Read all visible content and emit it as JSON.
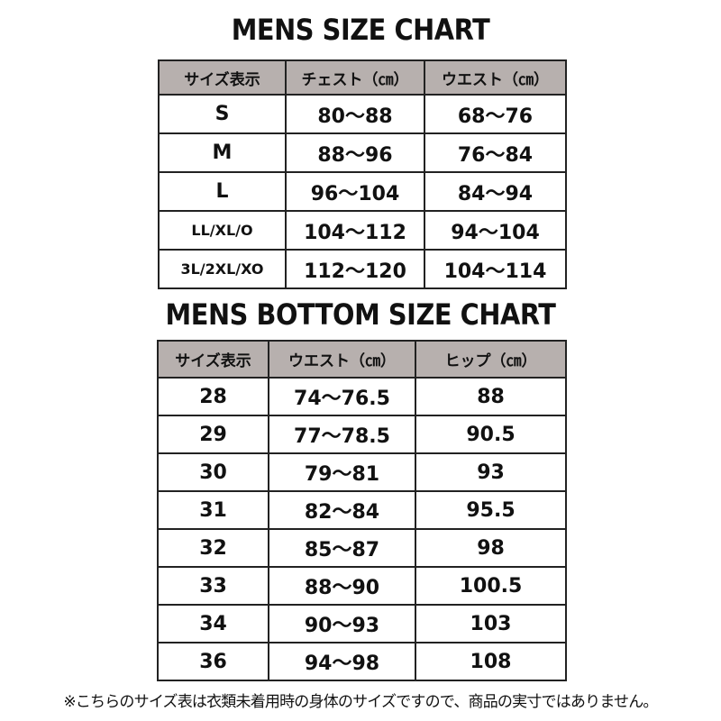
{
  "top_chart": {
    "title": "MENS SIZE CHART",
    "headers": [
      "サイズ表示",
      "チェスト（㎝）",
      "ウエスト（㎝）"
    ],
    "rows": [
      [
        "S",
        "80～88",
        "68～76"
      ],
      [
        "M",
        "88～96",
        "76～84"
      ],
      [
        "L",
        "96～104",
        "84～94"
      ],
      [
        "LL/XL/O",
        "104～112",
        "94～104"
      ],
      [
        "3L/2XL/XO",
        "112～120",
        "104～114"
      ]
    ]
  },
  "bottom_chart": {
    "title": "MENS BOTTOM SIZE CHART",
    "headers": [
      "サイズ表示",
      "ウエスト（㎝）",
      "ヒップ（㎝）"
    ],
    "rows": [
      [
        "28",
        "74～76.5",
        "88"
      ],
      [
        "29",
        "77～78.5",
        "90.5"
      ],
      [
        "30",
        "79～81",
        "93"
      ],
      [
        "31",
        "82～84",
        "95.5"
      ],
      [
        "32",
        "85～87",
        "98"
      ],
      [
        "33",
        "88～90",
        "100.5"
      ],
      [
        "34",
        "90～93",
        "103"
      ],
      [
        "36",
        "94～98",
        "108"
      ]
    ]
  },
  "footnote": "※こちらのサイズ表は衣類未着用時の身体のサイズですので、商品の実寸ではありません。",
  "colors": {
    "header_bg": "#b7b0ae",
    "border": "#222222"
  }
}
